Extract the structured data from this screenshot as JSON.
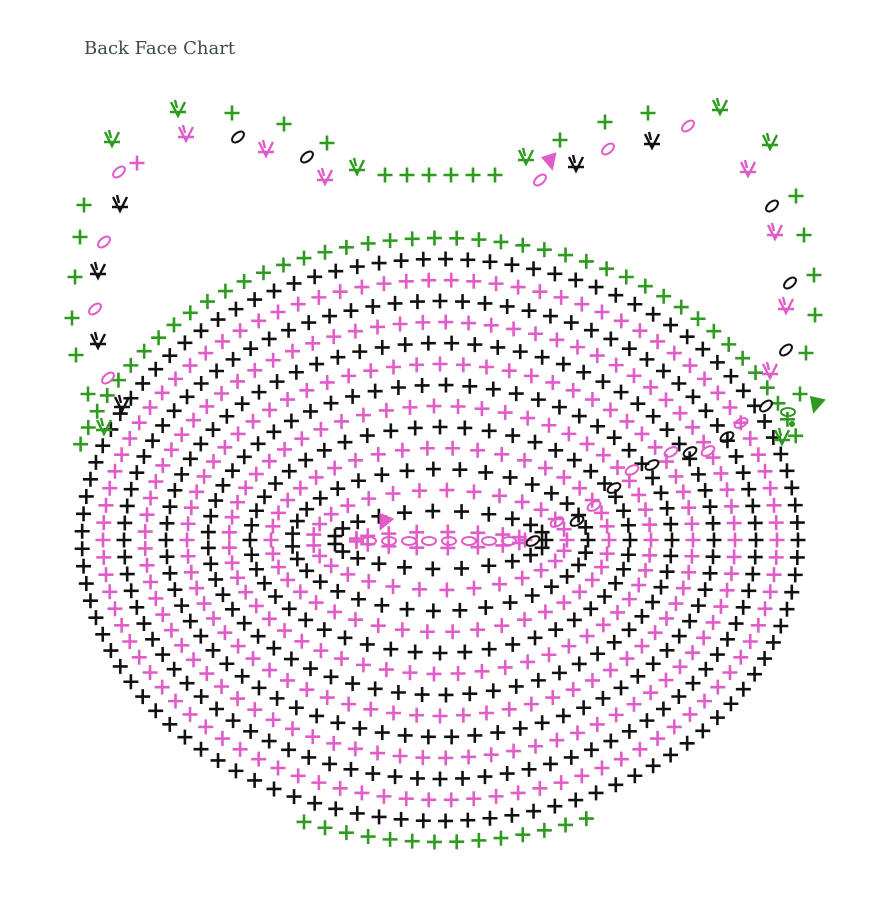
{
  "page": {
    "title": "Back Face Chart"
  },
  "diagram": {
    "type": "crochet-stitch-chart",
    "colors": {
      "pink": "#e05cc8",
      "black": "#111111",
      "green": "#2e9a1f"
    },
    "symbols": {
      "single_crochet": "plus",
      "chain": "oval",
      "increase": "v-shape",
      "start_marker": "triangle"
    },
    "round_colors": [
      "pink",
      "black",
      "pink",
      "black",
      "pink",
      "black",
      "pink",
      "black",
      "pink",
      "black",
      "pink",
      "black",
      "pink",
      "black",
      "green"
    ]
  }
}
